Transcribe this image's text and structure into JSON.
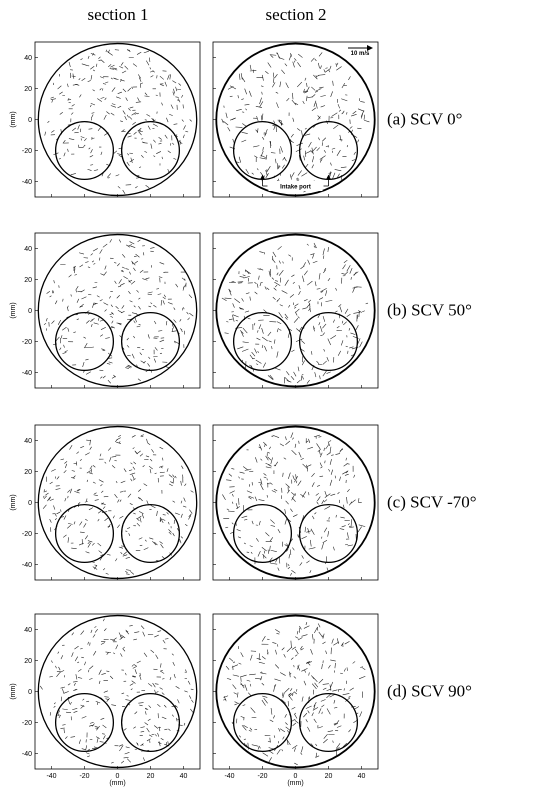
{
  "columns": [
    "section 1",
    "section 2"
  ],
  "rows": [
    {
      "label": "(a)  SCV 0°"
    },
    {
      "label": "(b)  SCV 50°"
    },
    {
      "label": "(c)  SCV -70°"
    },
    {
      "label": "(d)  SCV 90°"
    }
  ],
  "axes": {
    "xlim": [
      -50,
      50
    ],
    "ylim": [
      -50,
      50
    ],
    "xticks": [
      -40,
      -20,
      0,
      20,
      40
    ],
    "yticks": [
      40,
      20,
      0,
      -20,
      -40
    ],
    "unit_label": "(mm)"
  },
  "scale_label": "10 m/s",
  "annotation": "Intake port"
}
